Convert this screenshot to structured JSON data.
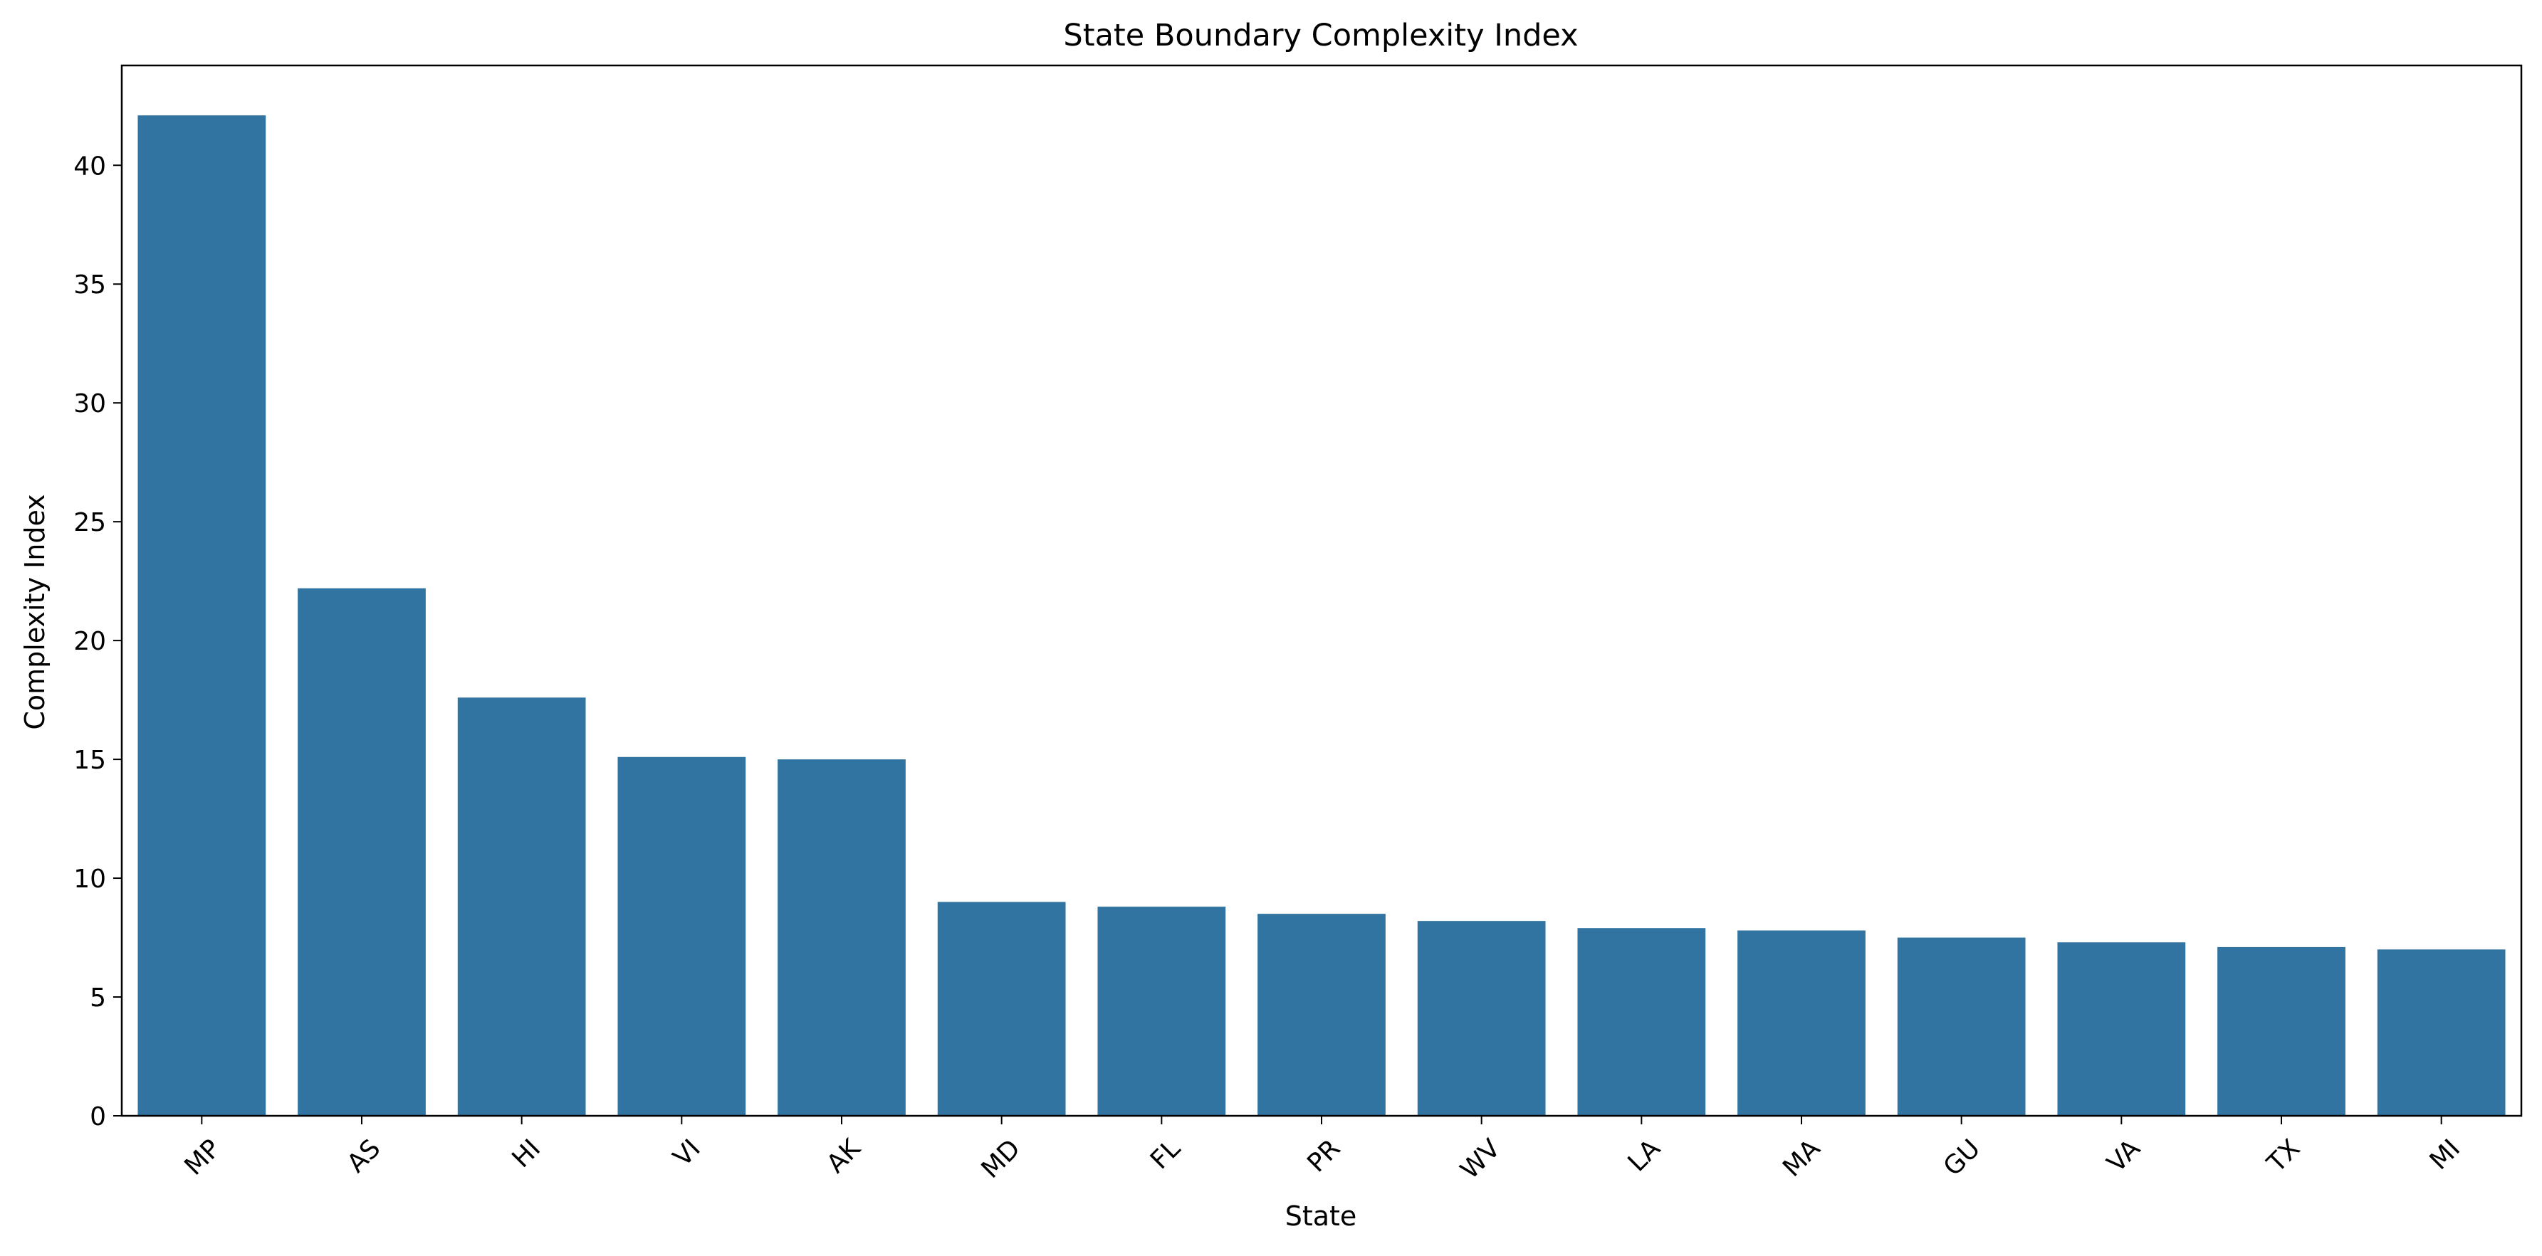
{
  "chart_data": {
    "type": "bar",
    "title": "State Boundary Complexity Index",
    "xlabel": "State",
    "ylabel": "Complexity Index",
    "categories": [
      "MP",
      "AS",
      "HI",
      "VI",
      "AK",
      "MD",
      "FL",
      "PR",
      "WV",
      "LA",
      "MA",
      "GU",
      "VA",
      "TX",
      "MI"
    ],
    "values": [
      42.1,
      22.2,
      17.6,
      15.1,
      15.0,
      9.0,
      8.8,
      8.5,
      8.2,
      7.9,
      7.8,
      7.5,
      7.3,
      7.1,
      7.0
    ],
    "ylim": [
      0,
      44.2
    ],
    "yticks": [
      0,
      5,
      10,
      15,
      20,
      25,
      30,
      35,
      40
    ],
    "grid": false,
    "bar_color": "#3274a1"
  }
}
